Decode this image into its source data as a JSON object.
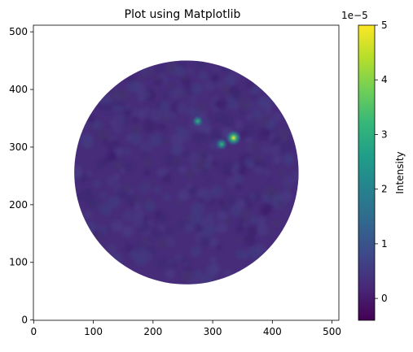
{
  "chart_data": {
    "type": "heatmap",
    "title": "Plot using Matplotlib",
    "image_shape": [
      512,
      512
    ],
    "x_ticks": [
      0,
      100,
      200,
      300,
      400,
      500
    ],
    "y_ticks": [
      0,
      100,
      200,
      300,
      400,
      500
    ],
    "xlim": [
      -0.5,
      511.5
    ],
    "ylim": [
      511.5,
      -0.5
    ],
    "disk": {
      "center": [
        256,
        256
      ],
      "radius": 188,
      "outside": "masked (white)"
    },
    "background_level": 0.0,
    "peaks": [
      {
        "x": 335,
        "y": 316,
        "value": 5e-05
      },
      {
        "x": 315,
        "y": 305,
        "value": 3e-05
      },
      {
        "x": 275,
        "y": 345,
        "value": 2.5e-05
      }
    ],
    "colorbar": {
      "label": "Intensity",
      "colormap": "viridis",
      "vmin": -0.4,
      "vmax": 5,
      "ticks": [
        0,
        1,
        2,
        3,
        4,
        5
      ],
      "offset_text": "1e−5"
    },
    "colors": {
      "viridis": [
        "#440154",
        "#482878",
        "#3e4989",
        "#31688e",
        "#26828e",
        "#1f9e89",
        "#35b779",
        "#6ece58",
        "#b5de2b",
        "#fde725"
      ]
    }
  }
}
